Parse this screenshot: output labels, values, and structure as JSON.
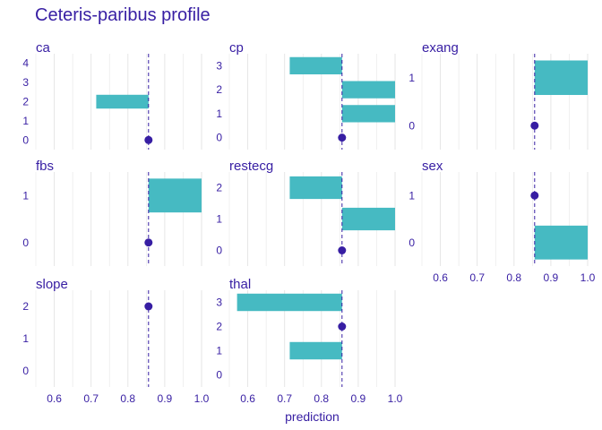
{
  "chart_data": {
    "type": "bar",
    "title": "Ceteris-paribus profile",
    "xlabel": "prediction",
    "xlim": [
      0.55,
      1.0
    ],
    "x_ticks": [
      "0.6",
      "0.7",
      "0.8",
      "0.9",
      "1.0"
    ],
    "baseline": 0.856,
    "colors": {
      "bar": "#46bac2",
      "line": "#371ea3",
      "text": "#371ea3",
      "grid": "#e6e6e6"
    },
    "panels": [
      {
        "name": "ca",
        "levels": [
          "0",
          "1",
          "2",
          "3",
          "4"
        ],
        "observed": "0",
        "predictions": [
          0.856,
          0.856,
          0.714,
          0.856,
          0.856
        ]
      },
      {
        "name": "cp",
        "levels": [
          "0",
          "1",
          "2",
          "3"
        ],
        "observed": "0",
        "predictions": [
          0.856,
          1.0,
          1.0,
          0.714
        ]
      },
      {
        "name": "exang",
        "levels": [
          "0",
          "1"
        ],
        "observed": "0",
        "predictions": [
          0.856,
          1.0
        ]
      },
      {
        "name": "fbs",
        "levels": [
          "0",
          "1"
        ],
        "observed": "0",
        "predictions": [
          0.856,
          1.0
        ]
      },
      {
        "name": "restecg",
        "levels": [
          "0",
          "1",
          "2"
        ],
        "observed": "0",
        "predictions": [
          0.856,
          1.0,
          0.714
        ]
      },
      {
        "name": "sex",
        "levels": [
          "0",
          "1"
        ],
        "observed": "1",
        "predictions": [
          1.0,
          0.856
        ]
      },
      {
        "name": "slope",
        "levels": [
          "0",
          "1",
          "2"
        ],
        "observed": "2",
        "predictions": [
          0.856,
          0.856,
          0.856
        ]
      },
      {
        "name": "thal",
        "levels": [
          "0",
          "1",
          "2",
          "3"
        ],
        "observed": "2",
        "predictions": [
          0.856,
          0.714,
          0.856,
          0.571
        ]
      }
    ]
  }
}
